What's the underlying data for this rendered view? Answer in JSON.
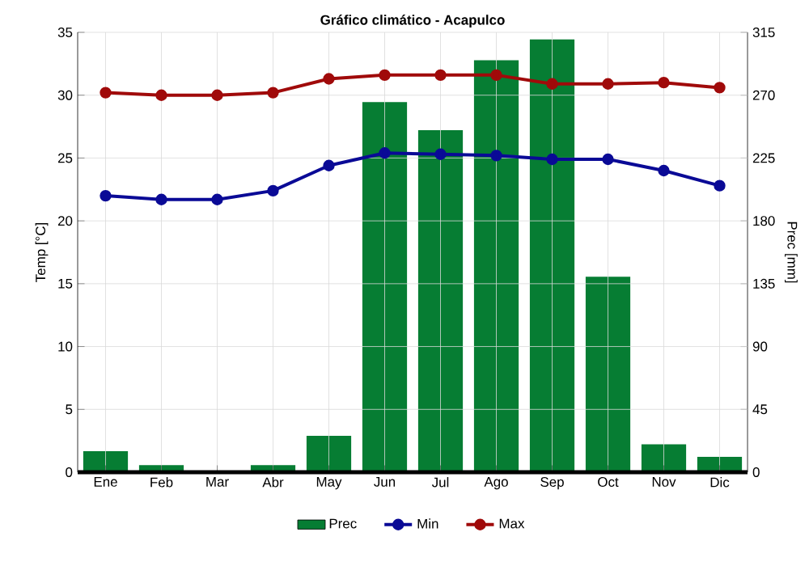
{
  "chart_data": {
    "type": "bar",
    "title": "Gráfico climático - Acapulco",
    "ylabel": "Temp [°C]",
    "y2label": "Prec [mm]",
    "categories": [
      "Ene",
      "Feb",
      "Mar",
      "Abr",
      "May",
      "Jun",
      "Jul",
      "Ago",
      "Sep",
      "Oct",
      "Nov",
      "Dic"
    ],
    "series": [
      {
        "name": "Prec",
        "axis": "y2",
        "color": "#067d33",
        "values": [
          15,
          5,
          1,
          5,
          26,
          265,
          245,
          295,
          310,
          140,
          20,
          11
        ]
      },
      {
        "name": "Min",
        "type": "line",
        "color": "#0a0a96",
        "values": [
          22.0,
          21.7,
          21.7,
          22.4,
          24.4,
          25.4,
          25.3,
          25.2,
          24.9,
          24.9,
          24.0,
          22.8
        ]
      },
      {
        "name": "Max",
        "type": "line",
        "color": "#a00a0a",
        "values": [
          30.2,
          30.0,
          30.0,
          30.2,
          31.3,
          31.6,
          31.6,
          31.6,
          30.9,
          30.9,
          31.0,
          30.6
        ]
      }
    ],
    "ylim": [
      0,
      35
    ],
    "yticks": [
      0,
      5,
      10,
      15,
      20,
      25,
      30,
      35
    ],
    "y2lim": [
      0,
      315
    ],
    "y2ticks": [
      0,
      45,
      90,
      135,
      180,
      225,
      270,
      315
    ],
    "grid": true,
    "legend": "bottom",
    "marker": "circle",
    "line_style": "solid"
  }
}
